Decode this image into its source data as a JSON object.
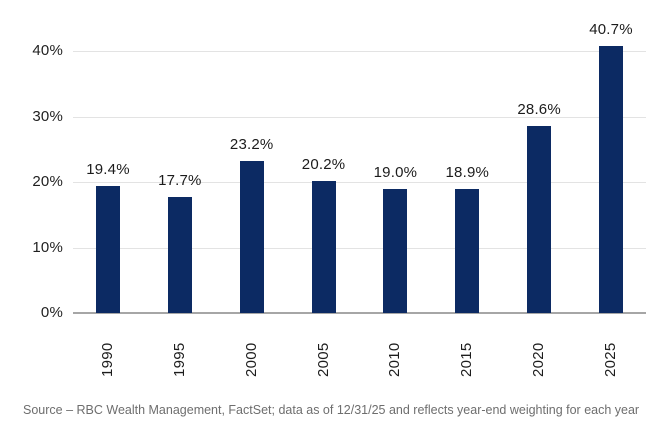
{
  "chart_data": {
    "type": "bar",
    "title": "",
    "xlabel": "",
    "ylabel": "",
    "categories": [
      "1990",
      "1995",
      "2000",
      "2005",
      "2010",
      "2015",
      "2020",
      "2025"
    ],
    "values": [
      19.4,
      17.7,
      23.2,
      20.2,
      19.0,
      18.9,
      28.6,
      40.7
    ],
    "value_labels": [
      "19.4%",
      "17.7%",
      "23.2%",
      "20.2%",
      "19.0%",
      "18.9%",
      "28.6%",
      "40.7%"
    ],
    "ylim": [
      0,
      45
    ],
    "yticks": [
      {
        "value": 0,
        "label": "0%"
      },
      {
        "value": 10,
        "label": "10%"
      },
      {
        "value": 20,
        "label": "20%"
      },
      {
        "value": 30,
        "label": "30%"
      },
      {
        "value": 40,
        "label": "40%"
      }
    ],
    "grid": true,
    "legend": "none",
    "colors": {
      "bar": "#0c2a63",
      "gridline": "#e3e3e3",
      "axis_line": "#a6a6a6",
      "tick_label": "#1f1f1f",
      "value_label": "#1c1c1c"
    }
  },
  "footer": {
    "source_text": "Source – RBC Wealth Management, FactSet; data as of 12/31/25 and reflects year-end weighting for each year",
    "color": "#6e6e6e"
  }
}
